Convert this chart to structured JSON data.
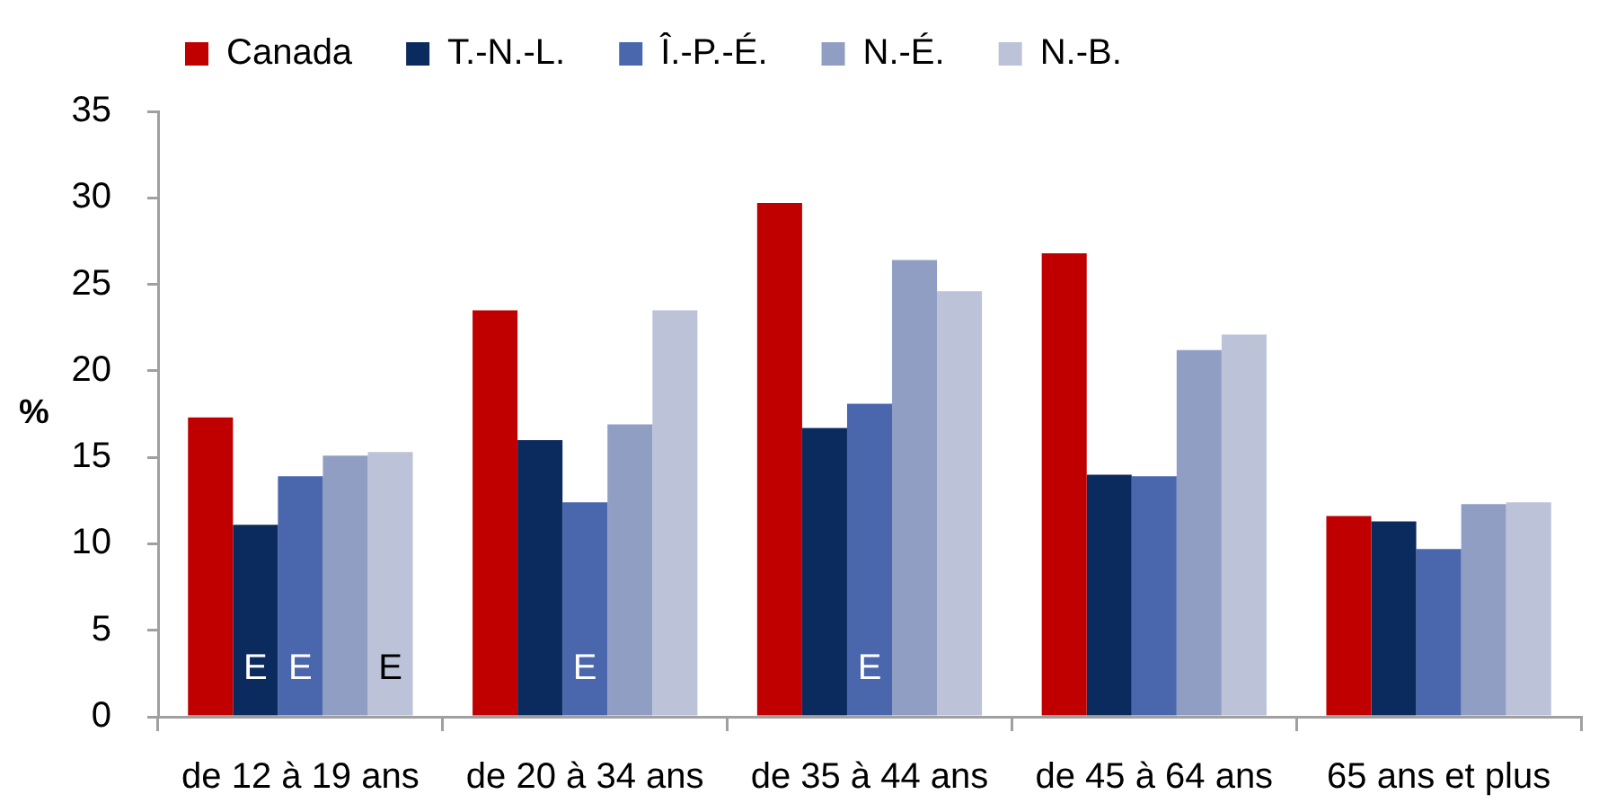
{
  "chart_data": {
    "type": "bar",
    "ylabel": "%",
    "categories": [
      "de 12 à 19 ans",
      "de 20 à 34 ans",
      "de 35 à 44 ans",
      "de 45 à 64 ans",
      "65 ans et plus"
    ],
    "series": [
      {
        "name": "Canada",
        "color": "#c00000",
        "values": [
          17.3,
          23.5,
          29.7,
          26.8,
          11.6
        ]
      },
      {
        "name": "T.-N.-L.",
        "color": "#0b2b5f",
        "values": [
          11.1,
          16.0,
          16.7,
          14.0,
          11.3
        ],
        "value_labels": [
          "E",
          null,
          null,
          null,
          null
        ]
      },
      {
        "name": "Î.-P.-É.",
        "color": "#4a67ae",
        "values": [
          13.9,
          12.4,
          18.1,
          13.9,
          9.7
        ],
        "value_labels": [
          "E",
          "E",
          "E",
          null,
          null
        ]
      },
      {
        "name": "N.-É.",
        "color": "#919ec4",
        "values": [
          15.1,
          16.9,
          26.4,
          21.2,
          12.3
        ]
      },
      {
        "name": "N.-B.",
        "color": "#bcc3d9",
        "values": [
          15.3,
          23.5,
          24.6,
          22.1,
          12.4
        ],
        "value_labels": [
          "E",
          null,
          null,
          null,
          null
        ]
      }
    ],
    "ylim": [
      0,
      35
    ],
    "yticks": [
      0,
      5,
      10,
      15,
      20,
      25,
      30,
      35
    ],
    "grid": false,
    "legend": "top left"
  }
}
